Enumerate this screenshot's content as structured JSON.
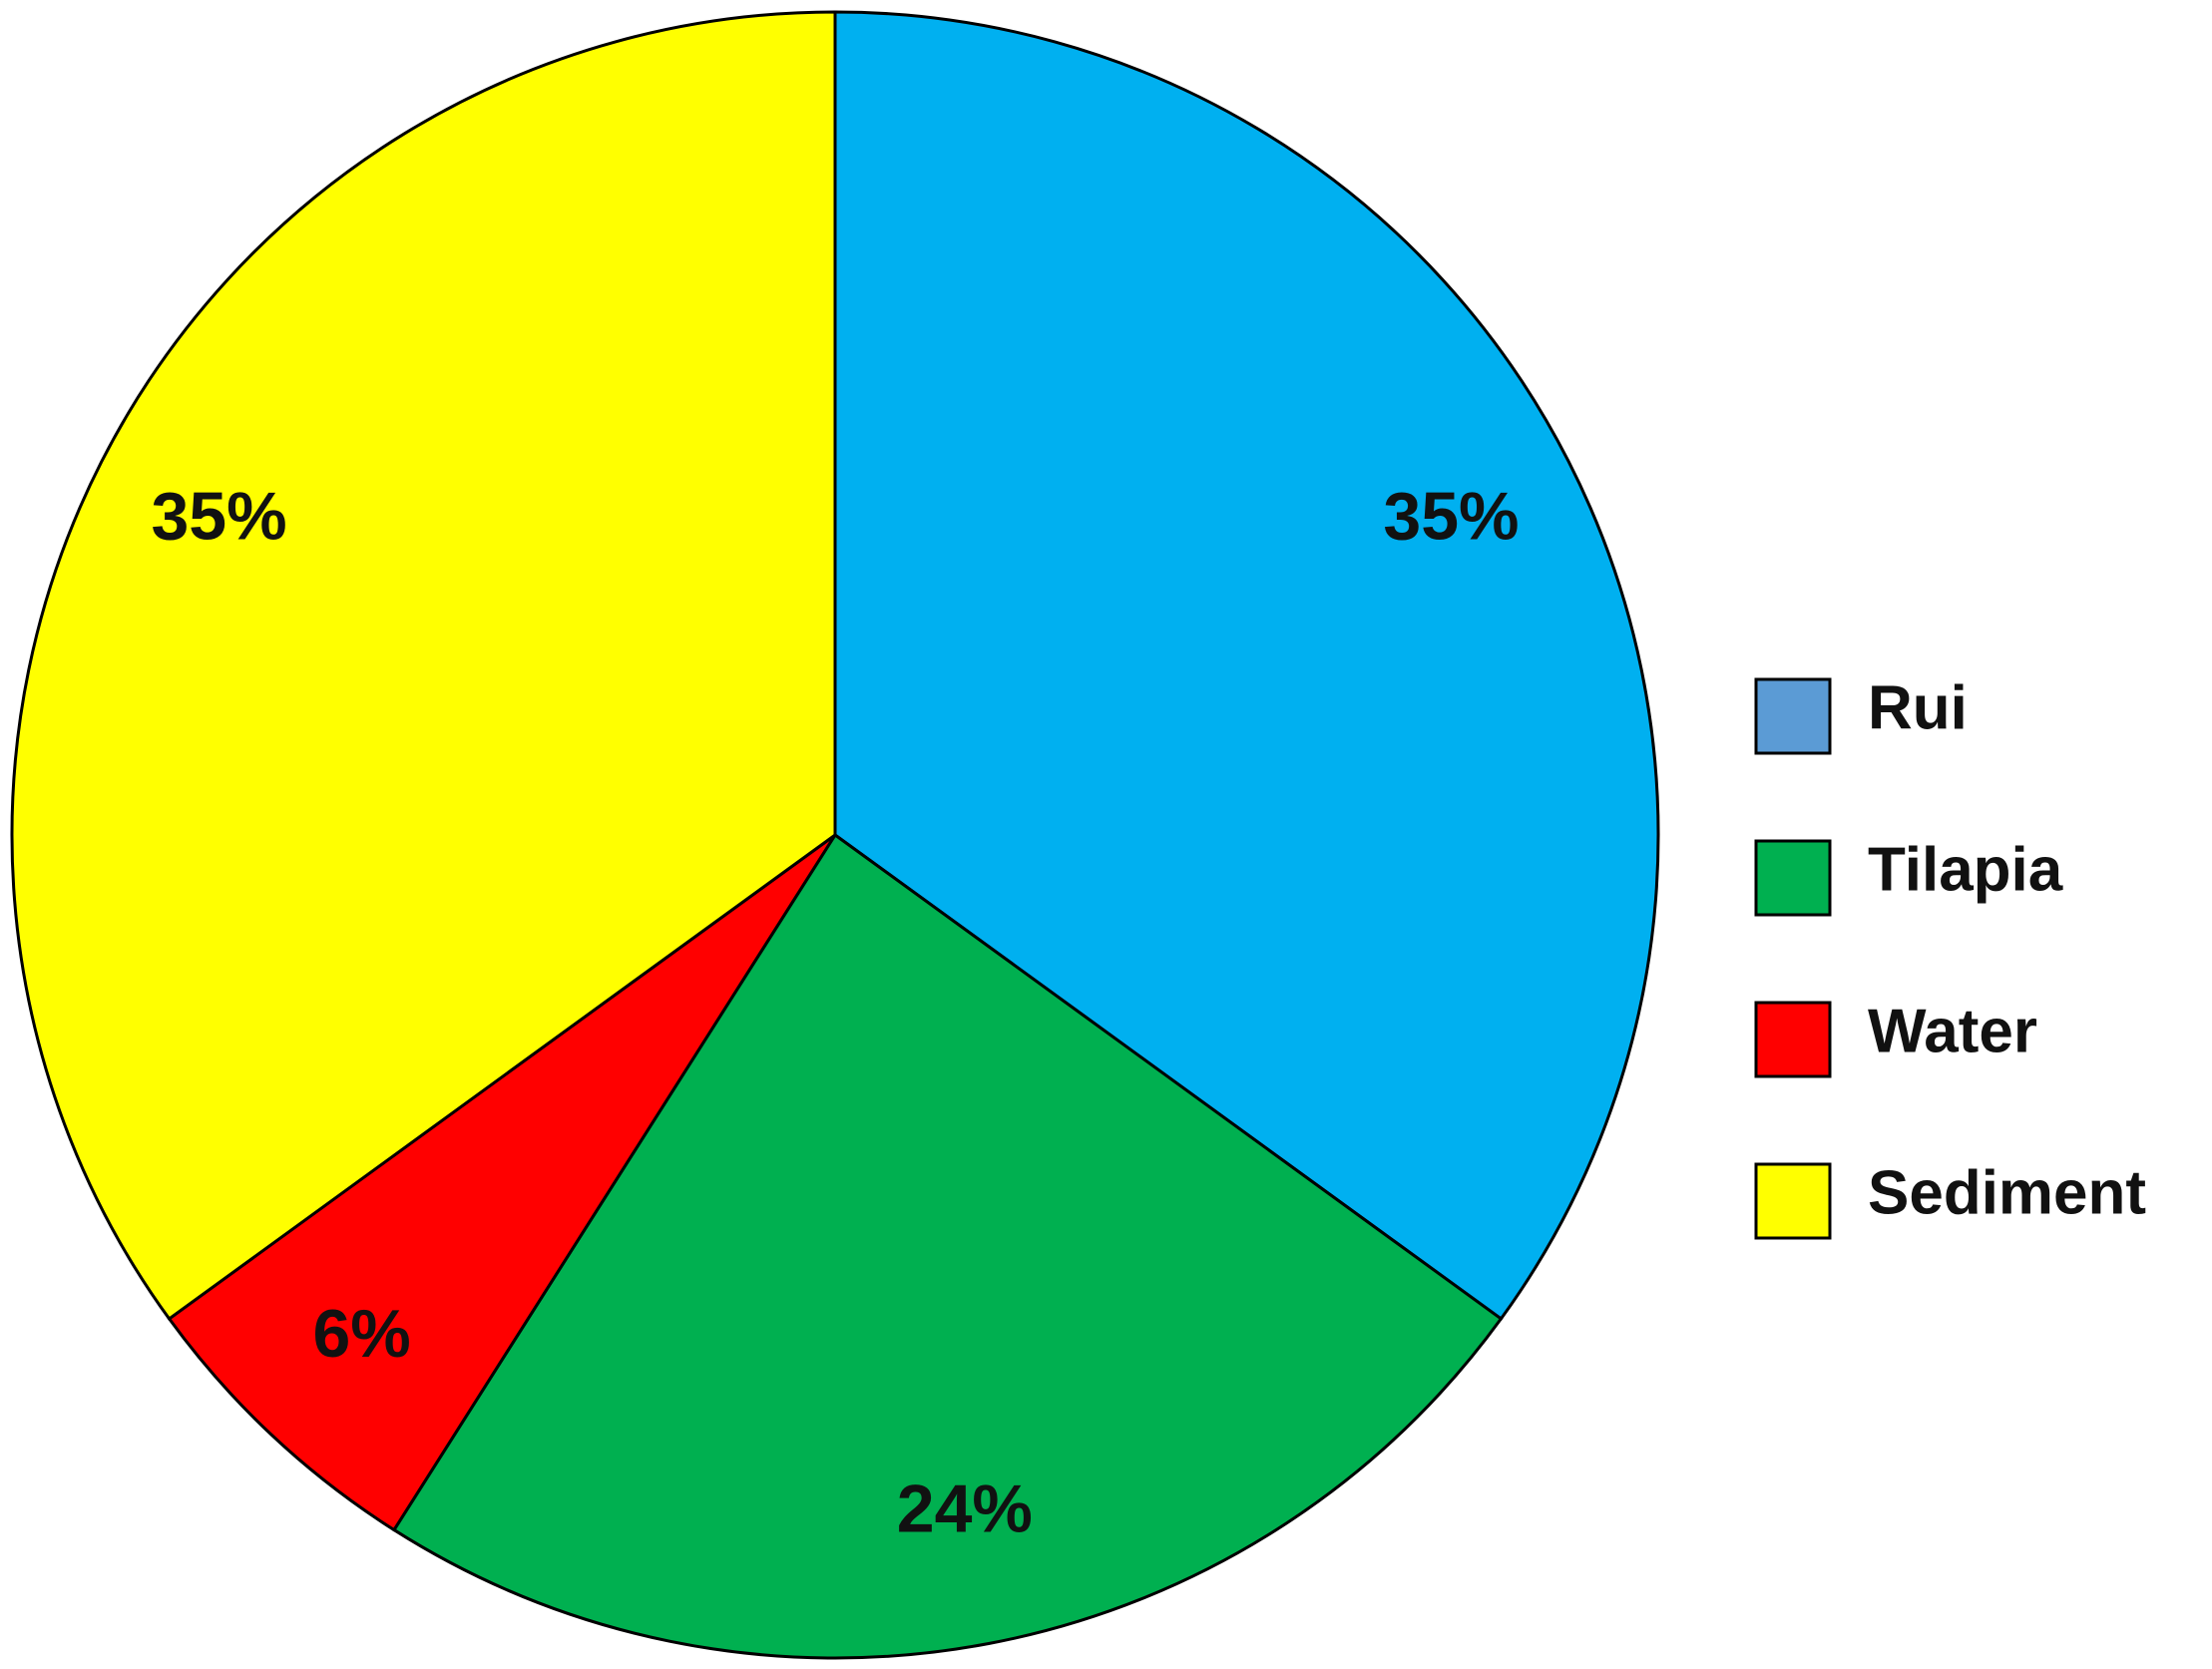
{
  "chart_data": {
    "type": "pie",
    "categories": [
      "Rui",
      "Tilapia",
      "Water",
      "Sediment"
    ],
    "values": [
      35,
      24,
      6,
      35
    ],
    "value_labels": [
      "35%",
      "24%",
      "6%",
      "35%"
    ],
    "colors": [
      "#00b0f0",
      "#00b050",
      "#ff0000",
      "#ffff00"
    ],
    "legend_colors": [
      "#5b9bd5",
      "#00b050",
      "#ff0000",
      "#ffff00"
    ],
    "legend": "right"
  }
}
